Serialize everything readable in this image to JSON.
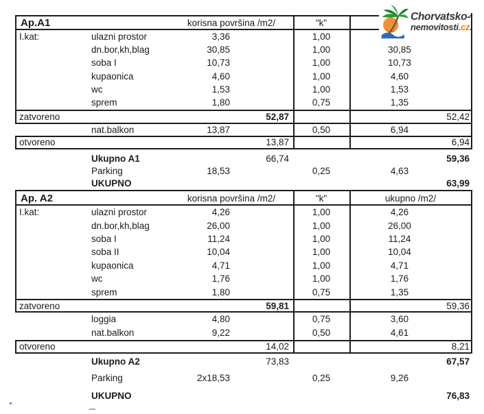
{
  "logo": {
    "line1": "Chorvatsko-",
    "line2_main": "nemovitosti",
    "line2_dot": ".",
    "line2_tld": "cz",
    "text_color": "#353535",
    "tld_orange": "#e87a1e",
    "dot_red": "#c23112",
    "palm_green": "#2c9a3c",
    "palm_green_dark": "#17802c",
    "sun_orange": "#f0913d",
    "sun_orange_deep": "#e2571f",
    "trunk_brown": "#7a5a2d",
    "wave_blue": "#2a6ab5"
  },
  "tables": [
    {
      "title": "Ap.A1",
      "header": {
        "korisna": "korisna površina /m2/",
        "k": "\"k\"",
        "ukupno": ""
      },
      "rows": [
        {
          "floor": "I.kat:",
          "label": "ulazni prostor",
          "area": "3,36",
          "k": "1,00",
          "weighted": ""
        },
        {
          "label": "dn.bor,kh,blag",
          "area": "30,85",
          "k": "1,00",
          "weighted": "30,85"
        },
        {
          "label": "soba I",
          "area": "10,73",
          "k": "1,00",
          "weighted": "10,73"
        },
        {
          "label": "kupaonica",
          "area": "4,60",
          "k": "1,00",
          "weighted": "4,60"
        },
        {
          "label": "wc",
          "area": "1,53",
          "k": "1,00",
          "weighted": "1,53"
        },
        {
          "label": "sprem",
          "area": "1,80",
          "k": "0,75",
          "weighted": "1,35"
        },
        {
          "section": "zatvoreno",
          "area_total": "52,87",
          "area_total_bold": true,
          "weighted_total": "52,42"
        },
        {
          "label": "nat.balkon",
          "area": "13,87",
          "k": "0,50",
          "weighted": "6,94"
        },
        {
          "section": "otvoreno",
          "area_total": "13,87",
          "weighted_total": "6,94"
        },
        {
          "label": "Ukupno A1",
          "label_bold": true,
          "area_total": "66,74",
          "weighted_total": "59,36",
          "weighted_total_bold": true
        },
        {
          "label": "Parking",
          "area": "18,53",
          "k": "0,25",
          "weighted": "4,63"
        },
        {
          "label": "UKUPNO",
          "label_bold": true,
          "weighted_total": "63,99",
          "weighted_total_bold": true
        }
      ]
    },
    {
      "title": "Ap. A2",
      "header": {
        "korisna": "korisna površina /m2/",
        "k": "\"k\"",
        "ukupno": "ukupno /m2/"
      },
      "rows": [
        {
          "floor": "I.kat:",
          "label": "ulazni prostor",
          "area": "4,26",
          "k": "1,00",
          "weighted": "4,26"
        },
        {
          "label": "dn.bor,kh,blag",
          "area": "26,00",
          "k": "1,00",
          "weighted": "26,00"
        },
        {
          "label": "soba I",
          "area": "11,24",
          "k": "1,00",
          "weighted": "11,24"
        },
        {
          "label": "soba II",
          "area": "10,04",
          "k": "1,00",
          "weighted": "10,04"
        },
        {
          "label": "kupaonica",
          "area": "4,71",
          "k": "1,00",
          "weighted": "4,71"
        },
        {
          "label": "wc",
          "area": "1,76",
          "k": "1,00",
          "weighted": "1,76"
        },
        {
          "label": "sprem",
          "area": "1,80",
          "k": "0,75",
          "weighted": "1,35"
        },
        {
          "section": "zatvoreno",
          "area_total": "59,81",
          "area_total_bold": true,
          "weighted_total": "59,36"
        },
        {
          "label": "loggia",
          "area": "4,80",
          "k": "0,75",
          "weighted": "3,60"
        },
        {
          "label": "nat.balkon",
          "area": "9,22",
          "k": "0,50",
          "weighted": "4,61"
        },
        {
          "section": "otvoreno",
          "area_total": "14,02",
          "weighted_total": "8,21"
        },
        {
          "label": "Ukupno A2",
          "label_bold": true,
          "area_total": "73,83",
          "weighted_total": "67,57",
          "weighted_total_bold": true
        },
        {
          "label": "Parking",
          "area": "2x18,53",
          "k": "0,25",
          "weighted": "9,26"
        },
        {
          "label": "UKUPNO",
          "label_bold": true,
          "weighted_total": "76,83",
          "weighted_total_bold": true
        }
      ]
    }
  ]
}
